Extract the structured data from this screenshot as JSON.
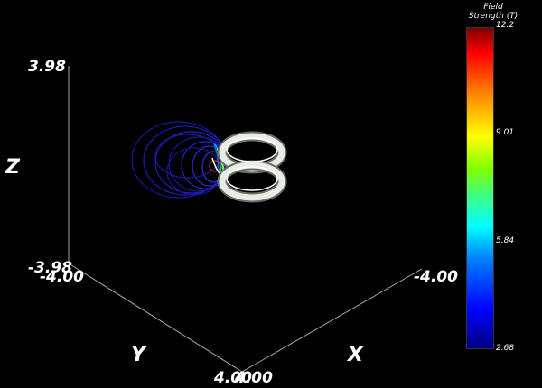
{
  "viewer": {
    "axes": {
      "z_label": "Z",
      "y_label": "Y",
      "x_label": "X",
      "z_max": "3.98",
      "z_min": "-3.98",
      "y_min": "-4.00",
      "x_min": "-4.00",
      "y_max": "4.00",
      "x_max": "4.00"
    },
    "colorbar": {
      "title_line1": "Field",
      "title_line2": "Strength (T)",
      "tick_max": "12.2",
      "tick_upper": "9.01",
      "tick_lower": "5.84",
      "tick_min": "2.68"
    },
    "colors": {
      "background": "#000000",
      "axis_lines": "#aaaaaa",
      "field_lines": "#1a1aa8",
      "coils": "#e8ece6"
    }
  }
}
